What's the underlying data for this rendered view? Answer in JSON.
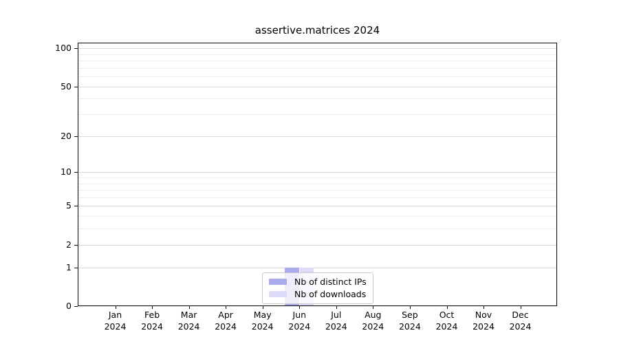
{
  "title": "assertive.matrices 2024",
  "chart_data": {
    "type": "bar",
    "title": "assertive.matrices 2024",
    "categories": [
      "Jan 2024",
      "Feb 2024",
      "Mar 2024",
      "Apr 2024",
      "May 2024",
      "Jun 2024",
      "Jul 2024",
      "Aug 2024",
      "Sep 2024",
      "Oct 2024",
      "Nov 2024",
      "Dec 2024"
    ],
    "series": [
      {
        "name": "Nb of distinct IPs",
        "color": "#aaaaec",
        "values": [
          0,
          0,
          0,
          0,
          0,
          1,
          0,
          0,
          0,
          0,
          0,
          0
        ]
      },
      {
        "name": "Nb of downloads",
        "color": "#dcdcf8",
        "values": [
          0,
          0,
          0,
          0,
          0,
          1,
          0,
          0,
          0,
          0,
          0,
          0
        ]
      }
    ],
    "xlabel": "",
    "ylabel": "",
    "y_scale": "log1p",
    "y_ticks": [
      0,
      1,
      2,
      5,
      10,
      20,
      50,
      100
    ],
    "y_minor_ticks": [
      3,
      4,
      6,
      7,
      8,
      9,
      30,
      40,
      60,
      70,
      80,
      90
    ],
    "ylim": [
      0,
      110
    ],
    "grid": "horizontal",
    "legend_position": "bottom-center"
  },
  "legend": {
    "items": [
      {
        "label": "Nb of distinct IPs",
        "swatch_color": "#aaaaec"
      },
      {
        "label": "Nb of downloads",
        "swatch_color": "#dcdcf8"
      }
    ]
  },
  "colors": {
    "background": "#ffffff",
    "axis": "#000000",
    "grid_major": "#d9d9d9",
    "grid_minor": "#ededed",
    "text": "#000000"
  }
}
